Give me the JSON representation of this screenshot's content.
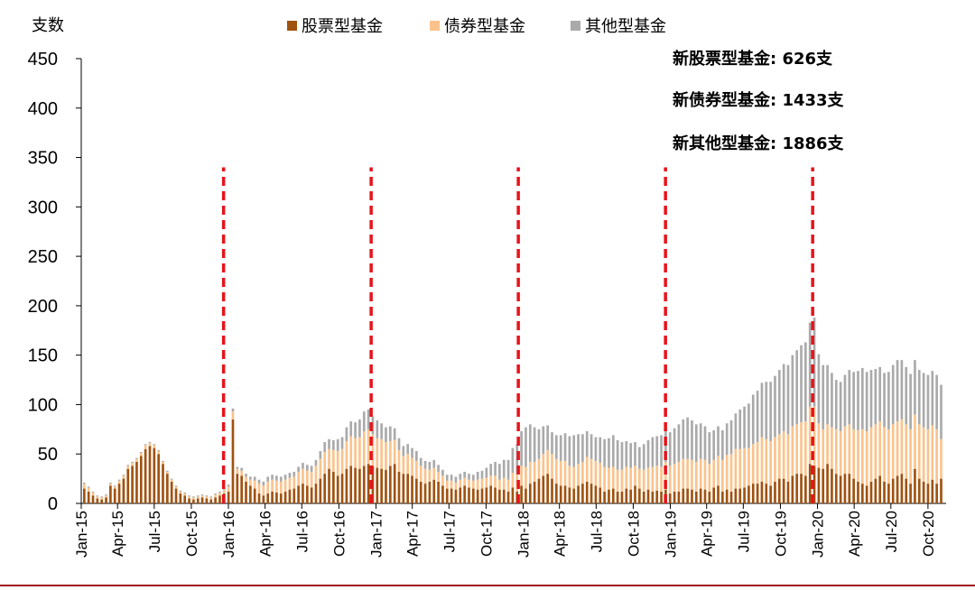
{
  "chart_data": {
    "type": "bar",
    "stacked": true,
    "ylabel": "支数",
    "ylim": [
      0,
      450
    ],
    "yticks": [
      "0",
      "50",
      "100",
      "150",
      "200",
      "250",
      "300",
      "350",
      "400",
      "450"
    ],
    "xlim": [
      "2015-01-01",
      "2020-11-15"
    ],
    "xticks": [
      {
        "date": "2015-01-01",
        "label": "Jan-15"
      },
      {
        "date": "2015-04-01",
        "label": "Apr-15"
      },
      {
        "date": "2015-07-01",
        "label": "Jul-15"
      },
      {
        "date": "2015-10-01",
        "label": "Oct-15"
      },
      {
        "date": "2016-01-01",
        "label": "Jan-16"
      },
      {
        "date": "2016-04-01",
        "label": "Apr-16"
      },
      {
        "date": "2016-07-01",
        "label": "Jul-16"
      },
      {
        "date": "2016-10-01",
        "label": "Oct-16"
      },
      {
        "date": "2017-01-01",
        "label": "Jan-17"
      },
      {
        "date": "2017-04-01",
        "label": "Apr-17"
      },
      {
        "date": "2017-07-01",
        "label": "Jul-17"
      },
      {
        "date": "2017-10-01",
        "label": "Oct-17"
      },
      {
        "date": "2018-01-01",
        "label": "Jan-18"
      },
      {
        "date": "2018-04-01",
        "label": "Apr-18"
      },
      {
        "date": "2018-07-01",
        "label": "Jul-18"
      },
      {
        "date": "2018-10-01",
        "label": "Oct-18"
      },
      {
        "date": "2019-01-01",
        "label": "Jan-19"
      },
      {
        "date": "2019-04-01",
        "label": "Apr-19"
      },
      {
        "date": "2019-07-01",
        "label": "Jul-19"
      },
      {
        "date": "2019-10-01",
        "label": "Oct-19"
      },
      {
        "date": "2020-01-01",
        "label": "Jan-20"
      },
      {
        "date": "2020-04-01",
        "label": "Apr-20"
      },
      {
        "date": "2020-07-01",
        "label": "Jul-20"
      },
      {
        "date": "2020-10-01",
        "label": "Oct-20"
      }
    ],
    "legend_position": "top",
    "series": [
      {
        "name": "股票型基金",
        "color": "#A0520F",
        "values": [
          15,
          12,
          8,
          5,
          4,
          6,
          18,
          15,
          20,
          25,
          35,
          38,
          42,
          48,
          55,
          58,
          56,
          50,
          40,
          30,
          22,
          15,
          10,
          8,
          5,
          4,
          5,
          6,
          5,
          4,
          6,
          8,
          10,
          12,
          85,
          30,
          28,
          22,
          18,
          15,
          10,
          8,
          10,
          12,
          11,
          10,
          12,
          14,
          15,
          18,
          20,
          18,
          16,
          20,
          25,
          30,
          35,
          32,
          28,
          30,
          35,
          38,
          36,
          35,
          38,
          40,
          38,
          36,
          35,
          34,
          38,
          40,
          32,
          30,
          30,
          28,
          25,
          22,
          20,
          22,
          24,
          22,
          18,
          15,
          15,
          14,
          16,
          18,
          16,
          15,
          14,
          15,
          16,
          18,
          16,
          14,
          14,
          12,
          16,
          12,
          18,
          15,
          20,
          22,
          25,
          28,
          30,
          25,
          20,
          18,
          18,
          16,
          15,
          18,
          20,
          22,
          20,
          18,
          16,
          12,
          14,
          15,
          12,
          12,
          15,
          14,
          18,
          15,
          12,
          14,
          12,
          13,
          12,
          14,
          10,
          12,
          12,
          15,
          15,
          14,
          12,
          15,
          14,
          12,
          16,
          18,
          12,
          14,
          12,
          15,
          15,
          16,
          18,
          20,
          20,
          22,
          20,
          18,
          22,
          25,
          25,
          22,
          28,
          30,
          30,
          28,
          40,
          38,
          36,
          35,
          40,
          35,
          30,
          28,
          30,
          30,
          25,
          22,
          20,
          18,
          22,
          25,
          28,
          22,
          20,
          25,
          28,
          30,
          25,
          20,
          35,
          25,
          22,
          20,
          24,
          20,
          25
        ]
      },
      {
        "name": "债券型基金",
        "color": "#FBC38C",
        "values": [
          5,
          4,
          3,
          2,
          2,
          2,
          2,
          2,
          3,
          3,
          3,
          3,
          3,
          3,
          4,
          3,
          3,
          3,
          2,
          2,
          2,
          2,
          2,
          2,
          2,
          2,
          2,
          2,
          2,
          2,
          3,
          3,
          4,
          5,
          8,
          5,
          5,
          5,
          6,
          8,
          10,
          10,
          12,
          12,
          12,
          12,
          12,
          12,
          12,
          14,
          15,
          15,
          16,
          18,
          20,
          22,
          20,
          22,
          25,
          25,
          28,
          30,
          30,
          32,
          35,
          35,
          32,
          30,
          30,
          28,
          25,
          24,
          22,
          18,
          20,
          18,
          18,
          16,
          15,
          12,
          12,
          10,
          10,
          8,
          8,
          7,
          8,
          8,
          8,
          8,
          10,
          10,
          10,
          10,
          12,
          10,
          12,
          12,
          15,
          18,
          20,
          22,
          22,
          20,
          20,
          22,
          24,
          25,
          25,
          25,
          25,
          22,
          22,
          22,
          22,
          25,
          25,
          25,
          25,
          25,
          22,
          22,
          22,
          22,
          22,
          22,
          20,
          20,
          22,
          22,
          25,
          25,
          25,
          28,
          28,
          28,
          30,
          30,
          30,
          30,
          30,
          30,
          30,
          28,
          28,
          30,
          32,
          35,
          38,
          40,
          40,
          40,
          38,
          40,
          42,
          45,
          45,
          45,
          45,
          45,
          48,
          48,
          50,
          50,
          52,
          55,
          58,
          60,
          45,
          40,
          40,
          42,
          45,
          45,
          48,
          50,
          50,
          52,
          55,
          55,
          55,
          55,
          55,
          55,
          55,
          55,
          55,
          55,
          55,
          55,
          55,
          55,
          55,
          55,
          55,
          55,
          40
        ]
      },
      {
        "name": "其他型基金",
        "color": "#AAAAAA",
        "values": [
          1,
          1,
          1,
          1,
          1,
          1,
          1,
          1,
          1,
          1,
          1,
          1,
          1,
          1,
          1,
          1,
          1,
          1,
          1,
          1,
          1,
          1,
          1,
          1,
          1,
          1,
          1,
          1,
          1,
          1,
          1,
          1,
          2,
          2,
          3,
          2,
          3,
          3,
          3,
          4,
          4,
          4,
          5,
          5,
          5,
          5,
          5,
          5,
          5,
          5,
          6,
          6,
          6,
          6,
          8,
          10,
          10,
          10,
          12,
          12,
          14,
          15,
          16,
          18,
          20,
          20,
          18,
          18,
          16,
          15,
          15,
          12,
          12,
          10,
          10,
          10,
          10,
          8,
          8,
          8,
          8,
          7,
          6,
          6,
          6,
          6,
          6,
          6,
          6,
          6,
          8,
          8,
          10,
          12,
          14,
          16,
          18,
          20,
          25,
          30,
          35,
          40,
          38,
          35,
          30,
          28,
          25,
          22,
          24,
          26,
          28,
          30,
          32,
          30,
          28,
          26,
          25,
          24,
          26,
          28,
          30,
          32,
          30,
          28,
          26,
          25,
          24,
          22,
          26,
          28,
          30,
          30,
          32,
          32,
          34,
          36,
          38,
          40,
          42,
          40,
          38,
          36,
          34,
          32,
          30,
          30,
          30,
          32,
          34,
          36,
          40,
          42,
          45,
          50,
          52,
          55,
          58,
          60,
          62,
          65,
          68,
          70,
          72,
          75,
          78,
          80,
          85,
          90,
          70,
          65,
          60,
          55,
          50,
          50,
          52,
          55,
          58,
          60,
          62,
          60,
          58,
          56,
          55,
          55,
          58,
          60,
          62,
          60,
          58,
          56,
          55,
          55,
          55,
          55,
          55,
          55,
          55
        ]
      }
    ],
    "annotations": [
      {
        "label": "新股票型基金:",
        "value": "626支"
      },
      {
        "label": "新债券型基金:",
        "value": "1433支"
      },
      {
        "label": "新其他型基金:",
        "value": "1886支"
      }
    ],
    "reference_lines": {
      "dates": [
        "2015-12-20",
        "2016-12-20",
        "2017-12-20",
        "2018-12-20",
        "2019-12-20"
      ],
      "color": "#E8131B",
      "style": "dashed",
      "ymax": 340
    }
  }
}
